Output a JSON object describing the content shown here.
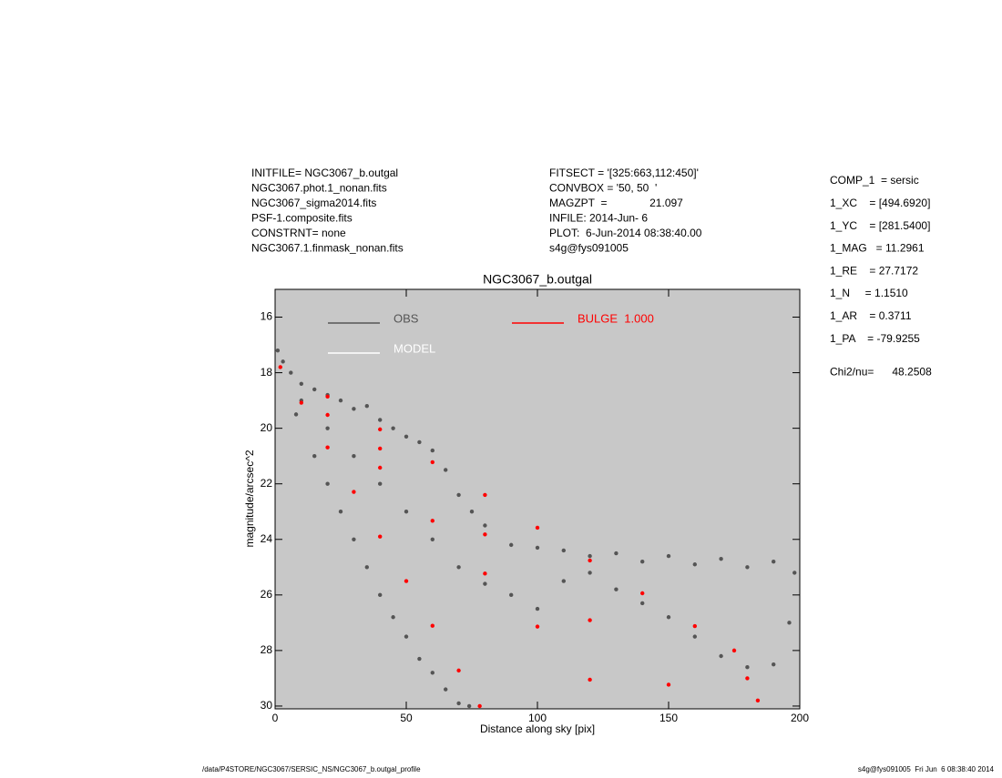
{
  "header": {
    "info_left": [
      "INITFILE= NGC3067_b.outgal",
      "NGC3067.phot.1_nonan.fits",
      "NGC3067_sigma2014.fits",
      "PSF-1.composite.fits",
      "CONSTRNT= none",
      "NGC3067.1.finmask_nonan.fits"
    ],
    "info_middle": [
      "FITSECT = '[325:663,112:450]'",
      "CONVBOX = '50, 50  '",
      "MAGZPT  =              21.097",
      "INFILE: 2014-Jun- 6",
      "PLOT:  6-Jun-2014 08:38:40.00",
      "s4g@fys091005"
    ],
    "params": [
      "COMP_1  = sersic",
      "1_XC    = [494.6920]",
      "1_YC    = [281.5400]",
      "1_MAG   = 11.2961",
      "1_RE    = 27.7172",
      "1_N     = 1.1510",
      "1_AR    = 0.3711",
      "1_PA    = -79.9255",
      "Chi2/nu=      48.2508"
    ],
    "footer_left": "/data/P4STORE/NGC3067/SERSIC_NS/NGC3067_b.outgal_profile",
    "footer_right": "s4g@fys091005  Fri Jun  6 08:38:40 2014"
  },
  "chart_data": {
    "type": "scatter",
    "title": "NGC3067_b.outgal",
    "xlabel": "Distance along sky [pix]",
    "ylabel": "magnitude/arcsec^2",
    "xlim": [
      0,
      200
    ],
    "ylim": [
      30.1,
      15.0
    ],
    "xticks": [
      0,
      50,
      100,
      150,
      200
    ],
    "yticks": [
      16,
      18,
      20,
      22,
      24,
      26,
      28,
      30
    ],
    "background": "#c8c8c8",
    "series": [
      {
        "name": "OBS",
        "color": "#555555",
        "x": [
          1,
          3,
          6,
          10,
          15,
          20,
          25,
          30,
          35,
          40,
          45,
          50,
          55,
          60,
          65,
          70,
          75,
          80,
          90,
          100,
          110,
          120,
          130,
          140,
          150,
          160,
          170,
          180,
          190,
          198,
          10,
          20,
          30,
          40,
          50,
          60,
          70,
          80,
          90,
          100,
          110,
          120,
          130,
          140,
          150,
          160,
          170,
          180,
          190,
          196,
          8,
          15,
          20,
          25,
          30,
          35,
          40,
          45,
          50,
          55,
          60,
          65,
          70,
          74
        ],
        "values": [
          17.2,
          17.6,
          18.0,
          18.4,
          18.6,
          18.8,
          19.0,
          19.3,
          19.2,
          19.7,
          20.0,
          20.3,
          20.5,
          20.8,
          21.5,
          22.4,
          23.0,
          23.5,
          24.2,
          24.3,
          24.4,
          24.6,
          24.5,
          24.8,
          24.6,
          24.9,
          24.7,
          25.0,
          24.8,
          25.2,
          19.0,
          20.0,
          21.0,
          22.0,
          23.0,
          24.0,
          25.0,
          25.6,
          26.0,
          26.5,
          25.5,
          25.2,
          25.8,
          26.3,
          26.8,
          27.5,
          28.2,
          28.6,
          28.5,
          27.0,
          19.5,
          21.0,
          22.0,
          23.0,
          24.0,
          25.0,
          26.0,
          26.8,
          27.5,
          28.3,
          28.8,
          29.4,
          29.9,
          30.0
        ]
      },
      {
        "name": "MODEL",
        "color": "#ffffff",
        "x": [],
        "values": []
      },
      {
        "name": "BULGE  1.000",
        "color": "#ff0000",
        "x": [
          2,
          20,
          40,
          60,
          80,
          100,
          120,
          140,
          160,
          175,
          20,
          40,
          60,
          80,
          100,
          120,
          10,
          20,
          30,
          40,
          50,
          60,
          70,
          78,
          180,
          184,
          40,
          80,
          120,
          150
        ],
        "values": [
          17.8,
          18.86,
          20.04,
          21.22,
          22.4,
          23.58,
          24.76,
          25.94,
          27.12,
          28.0,
          19.52,
          21.42,
          23.33,
          25.23,
          27.14,
          29.05,
          19.08,
          20.69,
          22.29,
          23.9,
          25.5,
          27.11,
          28.72,
          30.0,
          29.0,
          29.8,
          20.73,
          23.82,
          26.91,
          29.23
        ]
      }
    ]
  }
}
